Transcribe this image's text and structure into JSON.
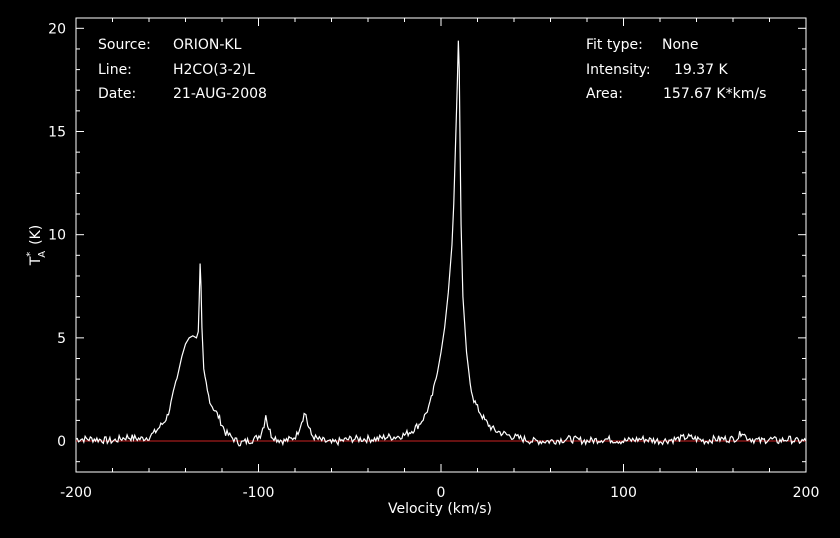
{
  "colors": {
    "background": "#000000",
    "axes": "#ffffff",
    "spectrum": "#ffffff",
    "baseline": "#cc2222"
  },
  "info": {
    "source_label": "Source:",
    "source_value": "ORION-KL",
    "line_label": "Line:",
    "line_value": "H2CO(3-2)L",
    "date_label": "Date:",
    "date_value": "21-AUG-2008",
    "fit_label": "Fit type:",
    "fit_value": "None",
    "intensity_label": "Intensity:",
    "intensity_value": "19.37 K",
    "area_label": "Area:",
    "area_value": "157.67 K*km/s"
  },
  "chart_data": {
    "type": "line",
    "xlabel": "Velocity (km/s)",
    "ylabel_main": "T",
    "ylabel_sup": "*",
    "ylabel_sub": "A",
    "ylabel_unit": "(K)",
    "xlim": [
      -200,
      200
    ],
    "ylim": [
      -1.5,
      20.5
    ],
    "x_ticks": [
      -200,
      -100,
      0,
      100,
      200
    ],
    "x_tick_labels": [
      "-200",
      "-100",
      "0",
      "100",
      "200"
    ],
    "y_ticks": [
      0,
      5,
      10,
      15,
      20
    ],
    "y_tick_labels": [
      "0",
      "5",
      "10",
      "15",
      "20"
    ],
    "grid": false,
    "baseline_y": 0,
    "series": [
      {
        "x": [
          -200,
          -190,
          -180,
          -172,
          -165,
          -160,
          -157,
          -155,
          -152,
          -150,
          -148,
          -146,
          -144,
          -142,
          -140,
          -138,
          -136,
          -134,
          -133,
          -132.5,
          -132,
          -131.5,
          -131,
          -130,
          -128,
          -126,
          -124,
          -122,
          -120,
          -118,
          -115,
          -112,
          -110,
          -106,
          -102,
          -99,
          -97,
          -96,
          -95,
          -93,
          -90,
          -86,
          -82,
          -79,
          -77,
          -75,
          -74,
          -73,
          -71,
          -68,
          -64,
          -60,
          -55,
          -50,
          -45,
          -40,
          -35,
          -30,
          -25,
          -20,
          -16,
          -12,
          -9,
          -6,
          -4,
          -2,
          0,
          2,
          4,
          6,
          7,
          8,
          9,
          9.5,
          10,
          10.5,
          11,
          12,
          14,
          16,
          18,
          20,
          22,
          24,
          26,
          28,
          30,
          33,
          36,
          40,
          45,
          50,
          60,
          70,
          80,
          90,
          100,
          110,
          120,
          130,
          135,
          140,
          145,
          150,
          155,
          160,
          163,
          165,
          167,
          170,
          175,
          180,
          185,
          190,
          195,
          200
        ],
        "y": [
          0.1,
          0.1,
          0.0,
          0.2,
          0.1,
          0.2,
          0.4,
          0.6,
          0.9,
          1.2,
          1.8,
          2.5,
          3.3,
          4.1,
          4.7,
          5.0,
          5.1,
          5.0,
          5.3,
          6.8,
          8.6,
          7.5,
          5.5,
          3.5,
          2.4,
          1.8,
          1.5,
          1.2,
          0.8,
          0.4,
          0.2,
          0.0,
          -0.1,
          0.0,
          0.1,
          0.3,
          0.8,
          1.3,
          0.8,
          0.3,
          0.1,
          0.0,
          0.1,
          0.3,
          0.8,
          1.3,
          1.3,
          0.8,
          0.3,
          0.1,
          0.0,
          -0.1,
          0.0,
          0.1,
          0.1,
          0.1,
          0.1,
          0.2,
          0.2,
          0.3,
          0.5,
          0.8,
          1.2,
          1.8,
          2.5,
          3.3,
          4.3,
          5.5,
          7.2,
          9.5,
          11.5,
          14.5,
          17.5,
          19.4,
          18.0,
          14.0,
          10.5,
          7.0,
          4.3,
          2.8,
          2.0,
          1.6,
          1.3,
          1.0,
          0.8,
          0.6,
          0.5,
          0.4,
          0.3,
          0.2,
          0.1,
          0.0,
          0.0,
          0.1,
          0.0,
          0.1,
          0.0,
          0.1,
          0.0,
          0.1,
          0.2,
          0.1,
          0.0,
          0.1,
          0.1,
          0.1,
          0.2,
          0.5,
          0.2,
          0.1,
          0.0,
          0.1,
          0.0,
          0.1,
          0.0,
          0.0
        ]
      }
    ]
  }
}
